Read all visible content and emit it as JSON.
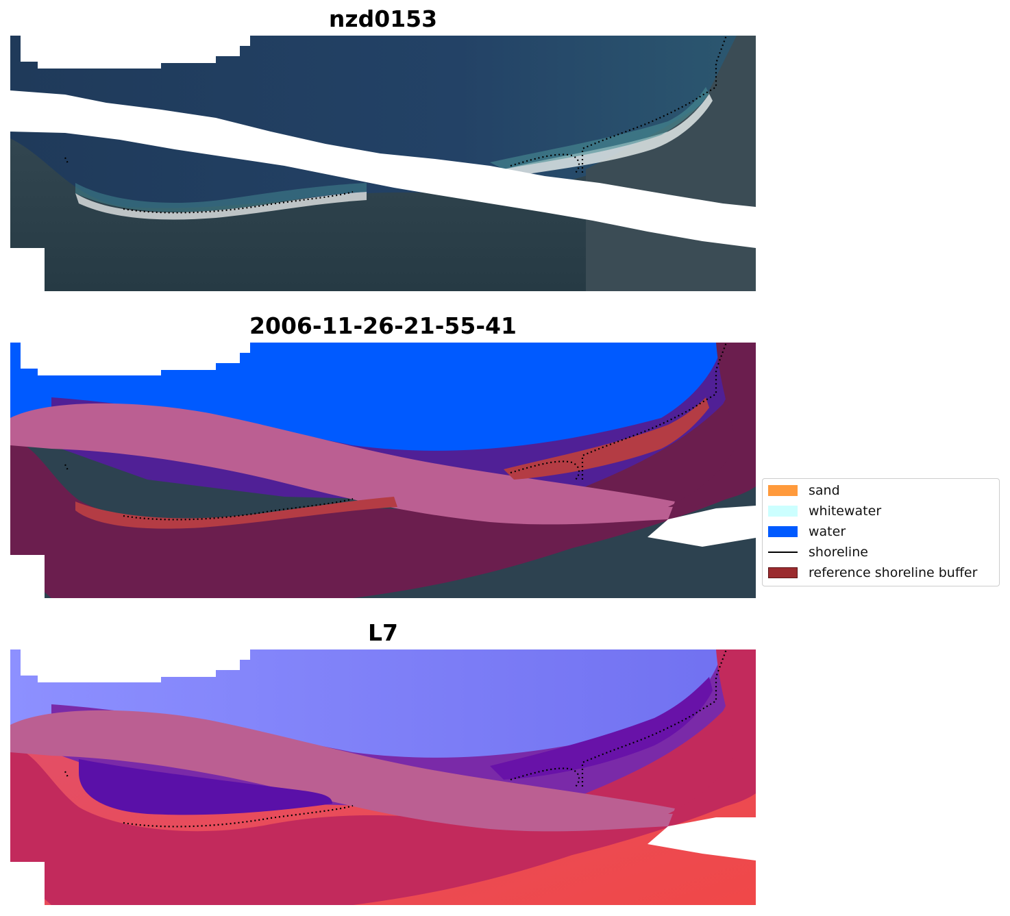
{
  "panels": [
    {
      "title": "nzd0153"
    },
    {
      "title": "2006-11-26-21-55-41"
    },
    {
      "title": "L7"
    }
  ],
  "legend": {
    "items": [
      {
        "label": "sand",
        "color": "#ff9a3c",
        "kind": "patch"
      },
      {
        "label": "whitewater",
        "color": "#ccffff",
        "kind": "patch"
      },
      {
        "label": "water",
        "color": "#005aff",
        "kind": "patch"
      },
      {
        "label": "shoreline",
        "color": "#000000",
        "kind": "line"
      },
      {
        "label": "reference shoreline buffer",
        "color": "#9b2b2e",
        "kind": "patch"
      }
    ]
  },
  "colors": {
    "rgb_water": "#233f5f",
    "rgb_land": "#2f4350",
    "rgb_sand": "#e8ece8",
    "class_water": "#005aff",
    "buffer_on_water": "#502096",
    "buffer_on_land": "#6b1e4e",
    "buffer_edge": "#b43c44",
    "swath_band": "#bb5f92",
    "mndwi_water": "#7a7cf2",
    "mndwi_land": "#d9405f",
    "mndwi_buffer_water": "#6a1fa8",
    "mndwi_buffer_land": "#c0285a"
  }
}
